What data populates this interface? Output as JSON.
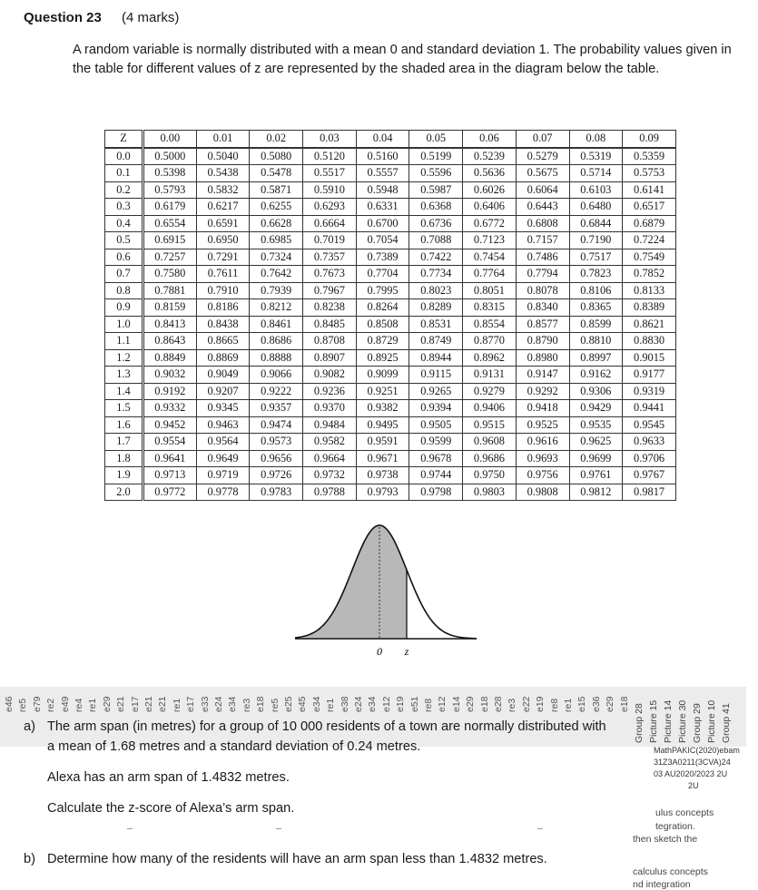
{
  "question": {
    "number": "Question 23",
    "marks": "(4 marks)",
    "intro": "A random variable is normally distributed with a mean 0 and standard deviation 1. The probability values given in the table for different values of z are represented by the shaded area in the diagram below the table."
  },
  "ztable": {
    "header": [
      "Z",
      "0.00",
      "0.01",
      "0.02",
      "0.03",
      "0.04",
      "0.05",
      "0.06",
      "0.07",
      "0.08",
      "0.09"
    ],
    "rows": [
      [
        "0.0",
        "0.5000",
        "0.5040",
        "0.5080",
        "0.5120",
        "0.5160",
        "0.5199",
        "0.5239",
        "0.5279",
        "0.5319",
        "0.5359"
      ],
      [
        "0.1",
        "0.5398",
        "0.5438",
        "0.5478",
        "0.5517",
        "0.5557",
        "0.5596",
        "0.5636",
        "0.5675",
        "0.5714",
        "0.5753"
      ],
      [
        "0.2",
        "0.5793",
        "0.5832",
        "0.5871",
        "0.5910",
        "0.5948",
        "0.5987",
        "0.6026",
        "0.6064",
        "0.6103",
        "0.6141"
      ],
      [
        "0.3",
        "0.6179",
        "0.6217",
        "0.6255",
        "0.6293",
        "0.6331",
        "0.6368",
        "0.6406",
        "0.6443",
        "0.6480",
        "0.6517"
      ],
      [
        "0.4",
        "0.6554",
        "0.6591",
        "0.6628",
        "0.6664",
        "0.6700",
        "0.6736",
        "0.6772",
        "0.6808",
        "0.6844",
        "0.6879"
      ],
      [
        "0.5",
        "0.6915",
        "0.6950",
        "0.6985",
        "0.7019",
        "0.7054",
        "0.7088",
        "0.7123",
        "0.7157",
        "0.7190",
        "0.7224"
      ],
      [
        "0.6",
        "0.7257",
        "0.7291",
        "0.7324",
        "0.7357",
        "0.7389",
        "0.7422",
        "0.7454",
        "0.7486",
        "0.7517",
        "0.7549"
      ],
      [
        "0.7",
        "0.7580",
        "0.7611",
        "0.7642",
        "0.7673",
        "0.7704",
        "0.7734",
        "0.7764",
        "0.7794",
        "0.7823",
        "0.7852"
      ],
      [
        "0.8",
        "0.7881",
        "0.7910",
        "0.7939",
        "0.7967",
        "0.7995",
        "0.8023",
        "0.8051",
        "0.8078",
        "0.8106",
        "0.8133"
      ],
      [
        "0.9",
        "0.8159",
        "0.8186",
        "0.8212",
        "0.8238",
        "0.8264",
        "0.8289",
        "0.8315",
        "0.8340",
        "0.8365",
        "0.8389"
      ],
      [
        "1.0",
        "0.8413",
        "0.8438",
        "0.8461",
        "0.8485",
        "0.8508",
        "0.8531",
        "0.8554",
        "0.8577",
        "0.8599",
        "0.8621"
      ],
      [
        "1.1",
        "0.8643",
        "0.8665",
        "0.8686",
        "0.8708",
        "0.8729",
        "0.8749",
        "0.8770",
        "0.8790",
        "0.8810",
        "0.8830"
      ],
      [
        "1.2",
        "0.8849",
        "0.8869",
        "0.8888",
        "0.8907",
        "0.8925",
        "0.8944",
        "0.8962",
        "0.8980",
        "0.8997",
        "0.9015"
      ],
      [
        "1.3",
        "0.9032",
        "0.9049",
        "0.9066",
        "0.9082",
        "0.9099",
        "0.9115",
        "0.9131",
        "0.9147",
        "0.9162",
        "0.9177"
      ],
      [
        "1.4",
        "0.9192",
        "0.9207",
        "0.9222",
        "0.9236",
        "0.9251",
        "0.9265",
        "0.9279",
        "0.9292",
        "0.9306",
        "0.9319"
      ],
      [
        "1.5",
        "0.9332",
        "0.9345",
        "0.9357",
        "0.9370",
        "0.9382",
        "0.9394",
        "0.9406",
        "0.9418",
        "0.9429",
        "0.9441"
      ],
      [
        "1.6",
        "0.9452",
        "0.9463",
        "0.9474",
        "0.9484",
        "0.9495",
        "0.9505",
        "0.9515",
        "0.9525",
        "0.9535",
        "0.9545"
      ],
      [
        "1.7",
        "0.9554",
        "0.9564",
        "0.9573",
        "0.9582",
        "0.9591",
        "0.9599",
        "0.9608",
        "0.9616",
        "0.9625",
        "0.9633"
      ],
      [
        "1.8",
        "0.9641",
        "0.9649",
        "0.9656",
        "0.9664",
        "0.9671",
        "0.9678",
        "0.9686",
        "0.9693",
        "0.9699",
        "0.9706"
      ],
      [
        "1.9",
        "0.9713",
        "0.9719",
        "0.9726",
        "0.9732",
        "0.9738",
        "0.9744",
        "0.9750",
        "0.9756",
        "0.9761",
        "0.9767"
      ],
      [
        "2.0",
        "0.9772",
        "0.9778",
        "0.9783",
        "0.9788",
        "0.9793",
        "0.9798",
        "0.9803",
        "0.9808",
        "0.9812",
        "0.9817"
      ]
    ]
  },
  "diagram": {
    "zero_label": "0",
    "z_label": "z",
    "fill_color": "#b8b8b8",
    "shaded_up_to_z": 0.55
  },
  "strip_fragments": [
    "e46",
    "re5",
    "e79",
    "re2",
    "e49",
    "re4",
    "re1",
    "e29",
    "e21",
    "e17",
    "e21",
    "e21",
    "re1",
    "e17",
    "e33",
    "e24",
    "e34",
    "re3",
    "e18",
    "re5",
    "e25",
    "e45",
    "e34",
    "re1",
    "e38",
    "e24",
    "e34",
    "e12",
    "e19",
    "e51",
    "re8",
    "e12",
    "e14",
    "e29",
    "e18",
    "e28",
    "re3",
    "e22",
    "e19",
    "re8",
    "re1",
    "e15",
    "e36",
    "e29",
    "e18"
  ],
  "side_labels": [
    "Group 28",
    "Picture 15",
    "Picture 14",
    "Picture 30",
    "Group 29",
    "Picture 10",
    "Group 41"
  ],
  "part_a": {
    "label": "a)",
    "line1": "The arm span (in metres) for a group of 10 000 residents of a town are normally distributed with",
    "line2": "a mean of 1.68 metres and a standard deviation of 0.24 metres.",
    "line3": "Alexa has an arm span of 1.4832 metres.",
    "line4": "Calculate the z-score of Alexa’s arm span."
  },
  "part_b": {
    "label": "b)",
    "text": "Determine how many of the residents will have an arm span less than 1.4832 metres."
  },
  "side_panel": {
    "garble1": "MathPAKIC(2020)ebam",
    "garble2": "31Z3A0211(3CVA)24",
    "garble3": "03 AU2020/2023 2U",
    "garble4": "2U",
    "frag1": "ulus concepts",
    "frag2": "tegration.",
    "frag3": "then sketch the",
    "frag4": "calculus concepts",
    "frag5": "nd integration"
  }
}
